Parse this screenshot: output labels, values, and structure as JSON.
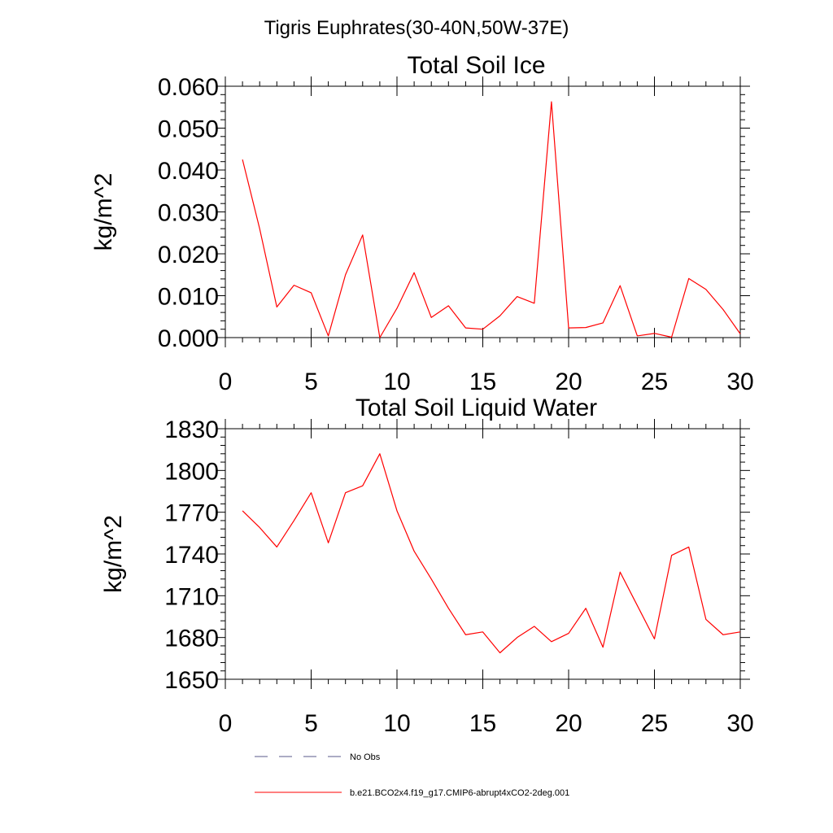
{
  "figure_title": "Tigris Euphrates(30-40N,50W-37E)",
  "chart_data": [
    {
      "type": "line",
      "title": "Total Soil Ice",
      "xlabel": "",
      "ylabel": "kg/m^2",
      "xlim": [
        0,
        30
      ],
      "ylim": [
        0,
        0.06
      ],
      "x_ticks": [
        "0",
        "5",
        "10",
        "15",
        "20",
        "25",
        "30"
      ],
      "y_ticks": [
        "0.000",
        "0.010",
        "0.020",
        "0.030",
        "0.040",
        "0.050",
        "0.060"
      ],
      "grid": false,
      "series": [
        {
          "name": "b.e21.BCO2x4.f19_g17.CMIP6-abrupt4xCO2-2deg.001",
          "color": "#ff0000",
          "x": [
            1,
            2,
            3,
            4,
            5,
            6,
            7,
            8,
            9,
            10,
            11,
            12,
            13,
            14,
            15,
            16,
            17,
            18,
            19,
            20,
            21,
            22,
            23,
            24,
            25,
            26,
            27,
            28,
            29,
            30
          ],
          "values": [
            0.0425,
            0.026,
            0.0073,
            0.0125,
            0.0107,
            0.0004,
            0.015,
            0.0245,
            0.0,
            0.007,
            0.0155,
            0.0048,
            0.0076,
            0.0023,
            0.002,
            0.0052,
            0.0098,
            0.0082,
            0.0563,
            0.0023,
            0.0024,
            0.0035,
            0.0124,
            0.0004,
            0.001,
            0.0001,
            0.0141,
            0.0115,
            0.0067,
            0.0009
          ]
        }
      ]
    },
    {
      "type": "line",
      "title": "Total Soil Liquid Water",
      "xlabel": "",
      "ylabel": "kg/m^2",
      "xlim": [
        0,
        30
      ],
      "ylim": [
        1650,
        1830
      ],
      "x_ticks": [
        "0",
        "5",
        "10",
        "15",
        "20",
        "25",
        "30"
      ],
      "y_ticks": [
        "1650",
        "1680",
        "1710",
        "1740",
        "1770",
        "1800",
        "1830"
      ],
      "grid": false,
      "series": [
        {
          "name": "b.e21.BCO2x4.f19_g17.CMIP6-abrupt4xCO2-2deg.001",
          "color": "#ff0000",
          "x": [
            1,
            2,
            3,
            4,
            5,
            6,
            7,
            8,
            9,
            10,
            11,
            12,
            13,
            14,
            15,
            16,
            17,
            18,
            19,
            20,
            21,
            22,
            23,
            24,
            25,
            26,
            27,
            28,
            29,
            30
          ],
          "values": [
            1771,
            1759,
            1745,
            1764,
            1784,
            1748,
            1784,
            1789,
            1812,
            1771,
            1742,
            1722,
            1701,
            1682,
            1684,
            1669,
            1680,
            1688,
            1677,
            1683,
            1701,
            1673,
            1727,
            1703,
            1679,
            1739,
            1745,
            1693,
            1682,
            1684
          ]
        }
      ]
    }
  ],
  "legend": {
    "placement": "bottom",
    "items": [
      {
        "label": "No Obs",
        "style": "dashed",
        "color": "#5a5a8a"
      },
      {
        "label": "b.e21.BCO2x4.f19_g17.CMIP6-abrupt4xCO2-2deg.001",
        "style": "solid",
        "color": "#ff0000"
      }
    ]
  }
}
